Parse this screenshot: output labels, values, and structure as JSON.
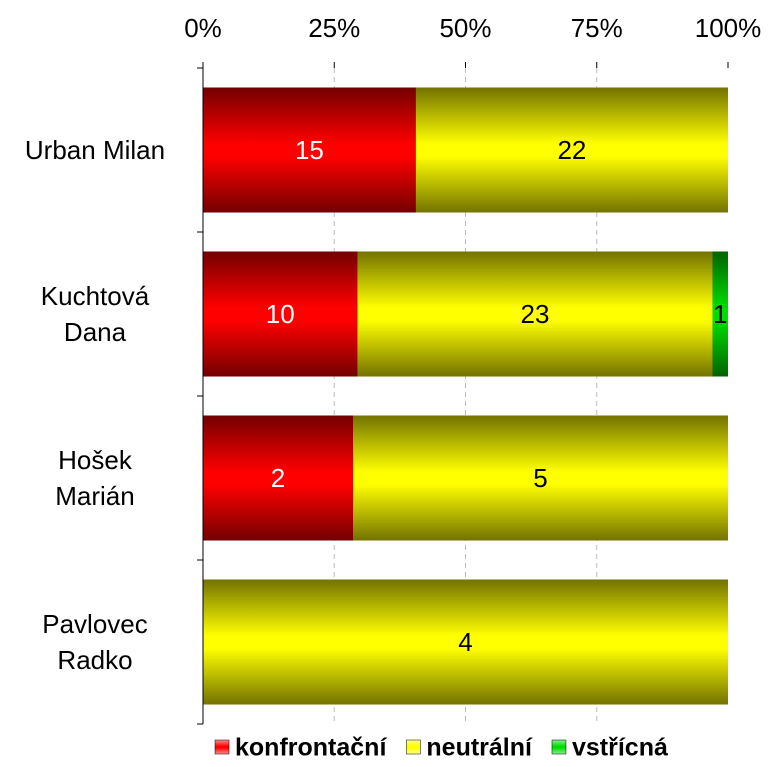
{
  "chart_data": {
    "type": "stacked_bar_100_horizontal",
    "categories": [
      "Urban Milan",
      "Kuchtová\nDana",
      "Hošek\nMarián",
      "Pavlovec\nRadko"
    ],
    "series": [
      {
        "name": "konfrontační",
        "color": "#ff0000",
        "label_color": "#ffffff",
        "values": [
          15,
          10,
          2,
          null
        ]
      },
      {
        "name": "neutrální",
        "color": "#ffff00",
        "label_color": "#000000",
        "values": [
          22,
          23,
          5,
          4
        ]
      },
      {
        "name": "vstřícná",
        "color": "#00dd00",
        "label_color": "#000000",
        "values": [
          null,
          1,
          null,
          null
        ]
      }
    ],
    "xlim": [
      0,
      100
    ],
    "xticks": [
      {
        "value": 0,
        "label": "0%"
      },
      {
        "value": 25,
        "label": "25%"
      },
      {
        "value": 50,
        "label": "50%"
      },
      {
        "value": 75,
        "label": "75%"
      },
      {
        "value": 100,
        "label": "100%"
      }
    ],
    "grid": true,
    "legend": "bottom"
  }
}
